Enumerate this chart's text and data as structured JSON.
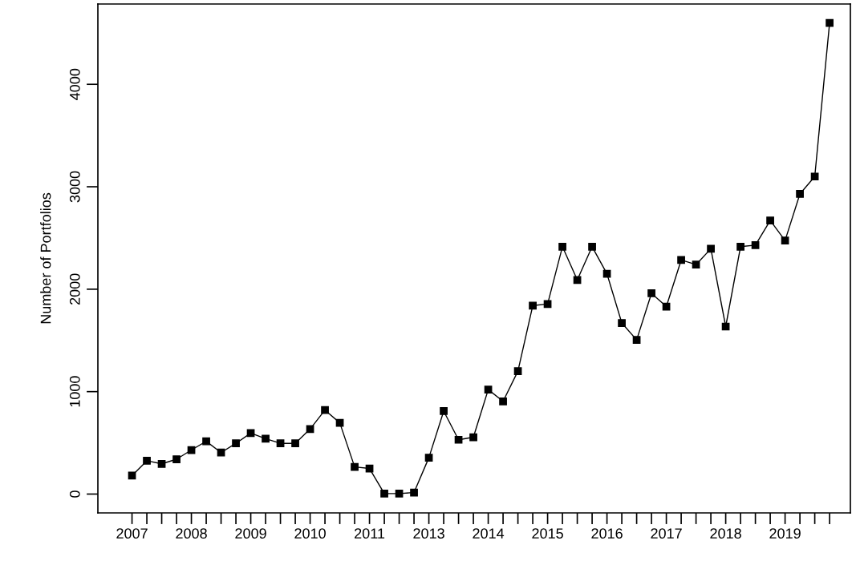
{
  "chart_data": {
    "type": "line",
    "ylabel": "Number of Portfolios",
    "categories": [
      "2007",
      null,
      null,
      null,
      "2008",
      null,
      null,
      null,
      "2009",
      null,
      null,
      null,
      "2010",
      null,
      null,
      null,
      "2011",
      null,
      null,
      null,
      "2013",
      null,
      null,
      null,
      "2014",
      null,
      null,
      null,
      "2015",
      null,
      null,
      null,
      "2016",
      null,
      null,
      null,
      "2017",
      null,
      null,
      null,
      "2018",
      null,
      null,
      null,
      "2019",
      null,
      null,
      null
    ],
    "values": [
      180,
      325,
      295,
      340,
      430,
      515,
      405,
      495,
      595,
      540,
      495,
      495,
      635,
      820,
      695,
      265,
      250,
      5,
      5,
      15,
      355,
      810,
      530,
      555,
      1020,
      905,
      1200,
      1840,
      1855,
      2415,
      2090,
      2415,
      2150,
      1670,
      1505,
      1960,
      1830,
      2285,
      2240,
      2395,
      1635,
      2415,
      2430,
      2670,
      2475,
      2930,
      3100,
      4600
    ],
    "color": "#000000",
    "marker": "square",
    "line_style": "solid",
    "grid": false,
    "legend": false,
    "ylim": [
      -184,
      4784
    ],
    "yticks": [
      0,
      1000,
      2000,
      3000,
      4000
    ]
  }
}
